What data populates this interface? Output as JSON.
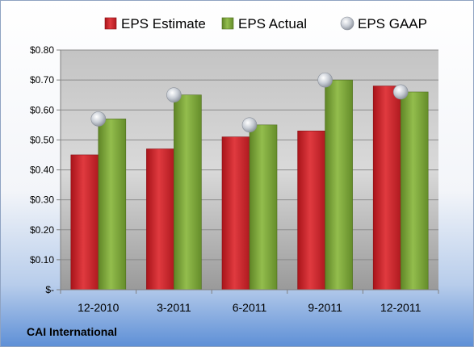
{
  "company_name": "CAI International",
  "chart_data": {
    "type": "bar",
    "categories": [
      "12-2010",
      "3-2011",
      "6-2011",
      "9-2011",
      "12-2011"
    ],
    "series": [
      {
        "name": "EPS Estimate",
        "values": [
          0.45,
          0.47,
          0.51,
          0.53,
          0.68
        ],
        "color": "#cc2228"
      },
      {
        "name": "EPS Actual",
        "values": [
          0.57,
          0.65,
          0.55,
          0.7,
          0.66
        ],
        "color": "#77a033"
      },
      {
        "name": "EPS GAAP",
        "values": [
          0.57,
          0.65,
          0.55,
          0.7,
          0.66
        ],
        "color": "#b8bec8",
        "kind": "marker"
      }
    ],
    "yticks": [
      "$-",
      "$0.10",
      "$0.20",
      "$0.30",
      "$0.40",
      "$0.50",
      "$0.60",
      "$0.70",
      "$0.80"
    ],
    "ylim": [
      0,
      0.8
    ],
    "legend_position": "top",
    "grid": true
  }
}
